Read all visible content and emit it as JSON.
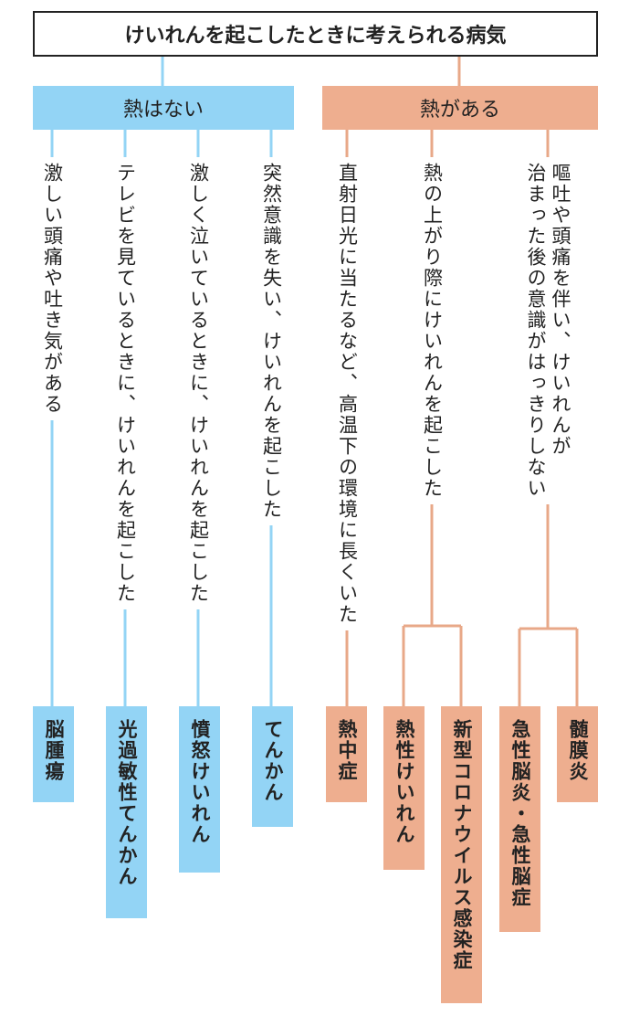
{
  "title": "けいれんを起こしたときに考えられる病気",
  "groups": [
    {
      "label": "熱はない",
      "branches": [
        {
          "lines": [
            "激しい頭痛や吐き気がある"
          ],
          "results": [
            "脳腫瘍"
          ]
        },
        {
          "lines": [
            "テレビを見ているときに、けいれんを起こした"
          ],
          "results": [
            "光過敏性てんかん"
          ]
        },
        {
          "lines": [
            "激しく泣いているときに、けいれんを起こした"
          ],
          "results": [
            "憤怒けいれん"
          ]
        },
        {
          "lines": [
            "突然意識を失い、けいれんを起こした"
          ],
          "results": [
            "てんかん"
          ]
        }
      ]
    },
    {
      "label": "熱がある",
      "branches": [
        {
          "lines": [
            "直射日光に当たるなど、高温下の環境に長くいた"
          ],
          "results": [
            "熱中症"
          ]
        },
        {
          "lines": [
            "熱の上がり際にけいれんを起こした"
          ],
          "results": [
            "熱性けいれん",
            "新型コロナウイルス感染症"
          ]
        },
        {
          "lines": [
            "嘔吐や頭痛を伴い、けいれんが",
            "治まった後の意識がはっきりしない"
          ],
          "results": [
            "急性脳炎・急性脳症",
            "髄膜炎"
          ]
        }
      ]
    }
  ]
}
